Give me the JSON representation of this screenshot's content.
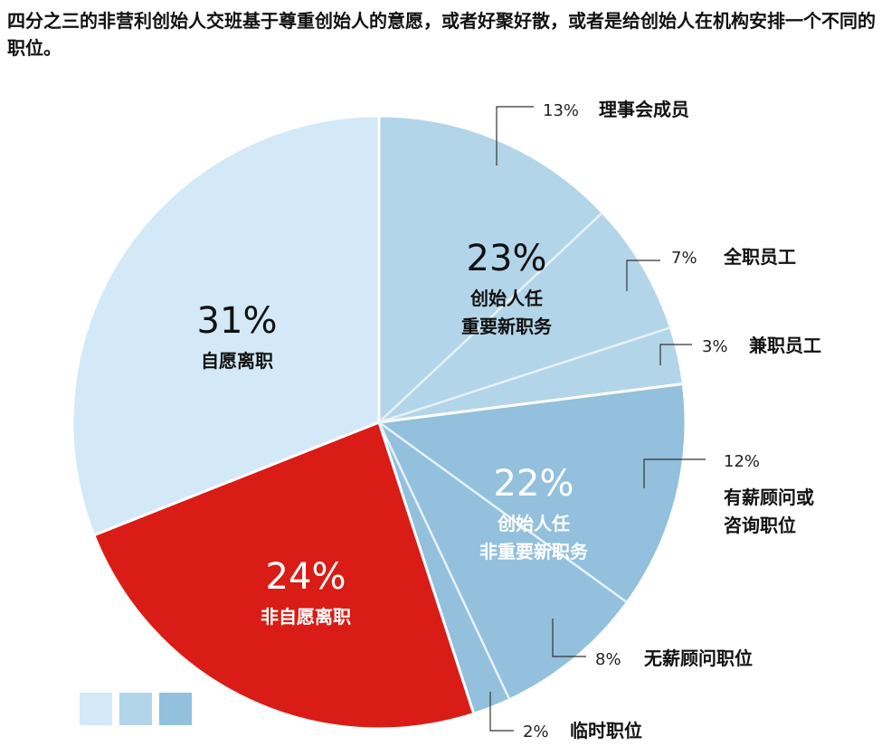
{
  "title": "四分之三的非营利创始人交班基于尊重创始人的意愿，或者好聚好散，或者是给创始人在机构安排一个不同的职位。",
  "colors": {
    "light": "#d3e9f7",
    "mid": "#b3d5e9",
    "dark": "#93c0dc",
    "red": "#d91c15",
    "leader": "#333333",
    "divider": "#e6f2f9"
  },
  "chart_data": {
    "type": "pie",
    "slices": [
      {
        "label": "自愿离职",
        "percent": 31,
        "color": "#d3e9f7"
      },
      {
        "label": "创始人任重要新职务",
        "percent": 23,
        "color": "#b3d5e9"
      },
      {
        "label": "创始人任非重要新职务",
        "percent": 22,
        "color": "#93c0dc"
      },
      {
        "label": "非自愿离职",
        "percent": 24,
        "color": "#d91c15"
      }
    ],
    "sub_slices": [
      {
        "parent": "创始人任重要新职务",
        "label": "理事会成员",
        "percent": 13
      },
      {
        "parent": "创始人任重要新职务",
        "label": "全职员工",
        "percent": 7
      },
      {
        "parent": "创始人任重要新职务",
        "label": "兼职员工",
        "percent": 3
      },
      {
        "parent": "创始人任非重要新职务",
        "label": "有薪顾问或咨询职位",
        "percent": 12
      },
      {
        "parent": "创始人任非重要新职务",
        "label": "无薪顾问职位",
        "percent": 8
      },
      {
        "parent": "创始人任非重要新职务",
        "label": "临时职位",
        "percent": 2
      }
    ],
    "inner_labels": [
      {
        "pct": "31%",
        "lines": [
          "自愿离职"
        ]
      },
      {
        "pct": "23%",
        "lines": [
          "创始人任",
          "重要新职务"
        ]
      },
      {
        "pct": "22%",
        "lines": [
          "创始人任",
          "非重要新职务"
        ]
      },
      {
        "pct": "24%",
        "lines": [
          "非自愿离职"
        ]
      }
    ],
    "callouts": [
      {
        "pct": "13%",
        "lines": [
          "理事会成员"
        ]
      },
      {
        "pct": "7%",
        "lines": [
          "全职员工"
        ]
      },
      {
        "pct": "3%",
        "lines": [
          "兼职员工"
        ]
      },
      {
        "pct": "12%",
        "lines": [
          "有薪顾问或",
          "咨询职位"
        ]
      },
      {
        "pct": "8%",
        "lines": [
          "无薪顾问职位"
        ]
      },
      {
        "pct": "2%",
        "lines": [
          "临时职位"
        ]
      }
    ],
    "legend_swatches": [
      "#d3e9f7",
      "#b3d5e9",
      "#93c0dc"
    ]
  }
}
